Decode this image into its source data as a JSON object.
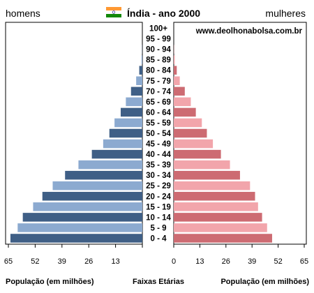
{
  "header": {
    "left_label": "homens",
    "title": "Índia - ano 2000",
    "right_label": "mulheres",
    "flag": {
      "colors": [
        "#ff9933",
        "#ffffff",
        "#138808"
      ],
      "wheel_color": "#000080"
    }
  },
  "watermark": "www.deolhonabolsa.com.br",
  "colors": {
    "male_dark": "#3f5f86",
    "male_light": "#8caad0",
    "female_dark": "#cd6b72",
    "female_light": "#f2a5ab",
    "frame": "#000000",
    "background": "#ffffff"
  },
  "chart_data": {
    "type": "bar",
    "orientation": "horizontal",
    "categories": [
      "100+",
      "95 - 99",
      "90 - 94",
      "85 - 89",
      "80 - 84",
      "75 - 79",
      "70 - 74",
      "65 - 69",
      "60 - 64",
      "55 - 59",
      "50 - 54",
      "45 - 49",
      "40 - 44",
      "35 - 39",
      "30 - 34",
      "25 - 29",
      "20 - 24",
      "15 - 19",
      "10 - 14",
      "5 - 9",
      "0 - 4"
    ],
    "series": [
      {
        "name": "homens",
        "values": [
          0,
          0,
          0.1,
          0.4,
          1.5,
          3.0,
          5.5,
          8.0,
          10.5,
          13.5,
          16.0,
          19.0,
          24.5,
          31.0,
          37.5,
          43.5,
          48.5,
          53.0,
          58.0,
          60.5,
          64.0
        ]
      },
      {
        "name": "mulheres",
        "values": [
          0,
          0,
          0.1,
          0.5,
          1.5,
          3.0,
          5.5,
          8.5,
          11.0,
          14.0,
          16.5,
          19.5,
          23.5,
          28.0,
          33.0,
          38.0,
          40.5,
          42.0,
          44.0,
          46.5,
          49.0
        ]
      }
    ],
    "x_ticks": [
      "65",
      "52",
      "39",
      "26",
      "13",
      "0",
      "13",
      "26",
      "39",
      "52",
      "65"
    ],
    "xlim": [
      0,
      65
    ],
    "xlabel_left": "População (em milhões)",
    "xlabel_center": "Faixas Etárias",
    "xlabel_right": "População (em milhões)"
  }
}
